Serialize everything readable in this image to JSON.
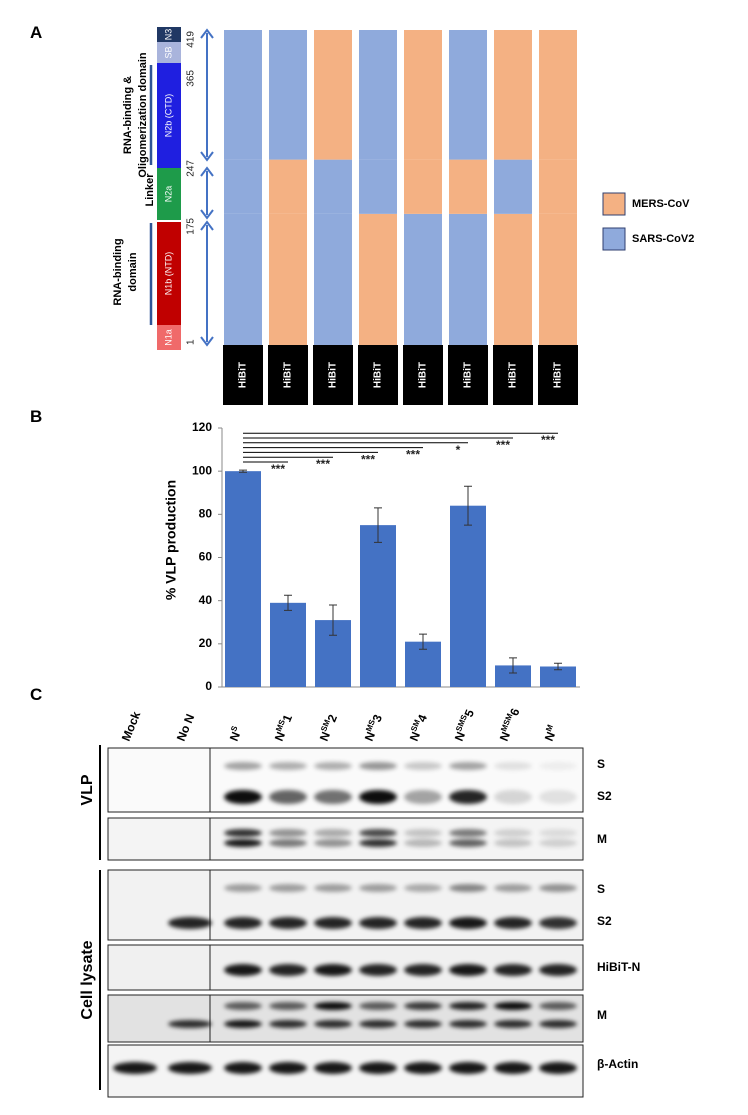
{
  "panel_labels": {
    "a": "A",
    "b": "B",
    "c": "C"
  },
  "panel_a": {
    "domains": [
      "N3",
      "SB",
      "N2b (CTD)",
      "N2a",
      "N1b (NTD)",
      "N1a"
    ],
    "positions": [
      419,
      365,
      247,
      175,
      1
    ],
    "regions": [
      [
        "RNA-binding &",
        "Oligomerization domain"
      ],
      [
        "Linker"
      ],
      [
        "RNA-binding",
        "domain"
      ]
    ],
    "constructs": [
      [
        1,
        1,
        1
      ],
      [
        0,
        0,
        1
      ],
      [
        1,
        1,
        0
      ],
      [
        0,
        1,
        1
      ],
      [
        1,
        0,
        0
      ],
      [
        1,
        0,
        1
      ],
      [
        0,
        1,
        0
      ],
      [
        0,
        0,
        0
      ]
    ],
    "tag": "HiBiT",
    "legend": [
      {
        "name": "MERS-CoV",
        "color": "#f4b183"
      },
      {
        "name": "SARS-CoV2",
        "color": "#8faadc"
      }
    ]
  },
  "chart_data": {
    "type": "bar",
    "ylabel": "% VLP production",
    "values": [
      100,
      39,
      31,
      75,
      21,
      84,
      10,
      9.5
    ],
    "errors": [
      0.5,
      3.5,
      7,
      8,
      3.5,
      9,
      3.5,
      1.5
    ],
    "color": "#4472c4",
    "ylim": [
      0,
      120
    ],
    "yticks": [
      0,
      20,
      40,
      60,
      80,
      100,
      120
    ],
    "significance": [
      "***",
      "***",
      "***",
      "***",
      "*",
      "***",
      "***"
    ]
  },
  "panel_c": {
    "lanes": [
      {
        "text": "Mock"
      },
      {
        "text": "No N"
      },
      {
        "main": "N",
        "sup": "S"
      },
      {
        "main": "N",
        "sup": "MS",
        "num": "1"
      },
      {
        "main": "N",
        "sup": "SM",
        "num": "2"
      },
      {
        "main": "N",
        "sup": "MS",
        "num": "3"
      },
      {
        "main": "N",
        "sup": "SM",
        "num": "4"
      },
      {
        "main": "N",
        "sup": "SMS",
        "num": "5"
      },
      {
        "main": "N",
        "sup": "MSM",
        "num": "6"
      },
      {
        "main": "N",
        "sup": "M"
      }
    ],
    "groups": [
      "VLP",
      "Cell lysate"
    ],
    "bands": [
      "S",
      "S2",
      "M",
      "S",
      "S2",
      "HiBiT-N",
      "M",
      "β-Actin"
    ]
  }
}
